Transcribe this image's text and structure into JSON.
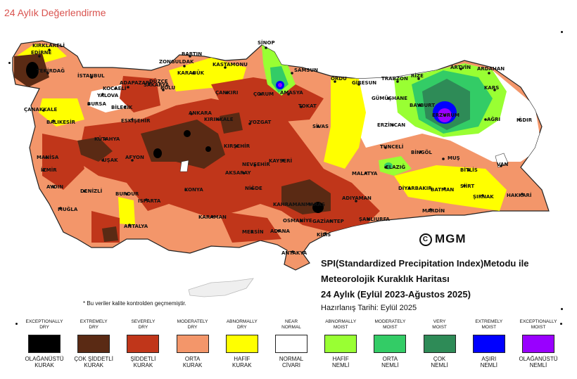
{
  "page_title": "24 Aylık Değerlendirme",
  "logo_text": "MGM",
  "map_title": {
    "line1": "SPI(Standardized Precipitation Index)Metodu ile",
    "line2": "Meteorolojik Kuraklık Haritası",
    "line3": "24 Aylık (Eylül 2023-Ağustos 2025)",
    "prepared": "Hazırlanış Tarihi: Eylül 2025"
  },
  "footnote": "* Bu veriler kalite kontrolden geçmemiştir.",
  "legend": [
    {
      "top": [
        "EXCEPTIONALLY",
        "DRY"
      ],
      "bottom": [
        "OLAĞANÜSTÜ",
        "KURAK"
      ],
      "color": "#000000"
    },
    {
      "top": [
        "EXTREMELY",
        "DRY"
      ],
      "bottom": [
        "ÇOK ŞİDDETLİ",
        "KURAK"
      ],
      "color": "#5a2a14"
    },
    {
      "top": [
        "SEVERELY",
        "DRY"
      ],
      "bottom": [
        "ŞİDDETLİ",
        "KURAK"
      ],
      "color": "#c0361a"
    },
    {
      "top": [
        "MODERATELY",
        "DRY"
      ],
      "bottom": [
        "ORTA",
        "KURAK"
      ],
      "color": "#f3966a"
    },
    {
      "top": [
        "ABNORMALLY",
        "DRY"
      ],
      "bottom": [
        "HAFİF",
        "KURAK"
      ],
      "color": "#ffff00"
    },
    {
      "top": [
        "NEAR",
        "NORMAL"
      ],
      "bottom": [
        "NORMAL",
        "CİVARI"
      ],
      "color": "#ffffff"
    },
    {
      "top": [
        "ABNORMALLY",
        "MOIST"
      ],
      "bottom": [
        "HAFİF",
        "NEMLİ"
      ],
      "color": "#99ff33"
    },
    {
      "top": [
        "MODERATELY",
        "MOIST"
      ],
      "bottom": [
        "ORTA",
        "NEMLİ"
      ],
      "color": "#33cc66"
    },
    {
      "top": [
        "VERY",
        "MOIST"
      ],
      "bottom": [
        "ÇOK",
        "NEMLİ"
      ],
      "color": "#2e8b57"
    },
    {
      "top": [
        "EXTREMELY",
        "MOIST"
      ],
      "bottom": [
        "AŞIRI",
        "NEMLİ"
      ],
      "color": "#0000ff"
    },
    {
      "top": [
        "EXCEPTIONALLY",
        "MOIST"
      ],
      "bottom": [
        "OLAĞANÜSTÜ",
        "NEMLİ"
      ],
      "color": "#9900ff"
    }
  ],
  "cities": [
    "KIRKLARELİ",
    "EDİRNE",
    "TEKİRDAĞ",
    "İSTANBUL",
    "BARTIN",
    "ZONGULDAK",
    "KARABÜK",
    "KASTAMONU",
    "SİNOP",
    "SAMSUN",
    "ORDU",
    "GİRESUN",
    "TRABZON",
    "RİZE",
    "ARTVİN",
    "ARDAHAN",
    "KARS",
    "SAKARYA",
    "DÜZCE",
    "BOLU",
    "KOCAELİ",
    "YALOVA",
    "ADAPAZARI",
    "ÇANAKKALE",
    "BURSA",
    "BİLECİK",
    "ÇANKIRI",
    "ÇORUM",
    "AMASYA",
    "TOKAT",
    "GÜMÜŞHANE",
    "BAYBURT",
    "ERZURUM",
    "AĞRI",
    "IĞDIR",
    "BALIKESİR",
    "ESKİŞEHİR",
    "ANKARA",
    "KIRIKKALE",
    "YOZGAT",
    "SİVAS",
    "ERZİNCAN",
    "TUNCELİ",
    "BİNGÖL",
    "MUŞ",
    "VAN",
    "KÜTAHYA",
    "KIRŞEHİR",
    "NEVŞEHİR",
    "KAYSERİ",
    "MANİSA",
    "İZMİR",
    "UŞAK",
    "AFYON",
    "AKSARAY",
    "MALATYA",
    "ELAZIĞ",
    "BİTLİS",
    "AYDIN",
    "DENİZLİ",
    "KONYA",
    "NİĞDE",
    "ADIYAMAN",
    "DİYARBAKIR",
    "BATMAN",
    "SİİRT",
    "ŞIRNAK",
    "HAKKARİ",
    "MUĞLA",
    "BURDUR",
    "ISPARTA",
    "KAHRAMANMARAŞ",
    "MARDİN",
    "ANTALYA",
    "KARAMAN",
    "OSMANİYE",
    "GAZİANTEP",
    "ŞANLIURFA",
    "MERSİN",
    "ADANA",
    "KİLİS",
    "ANTAKYA"
  ]
}
